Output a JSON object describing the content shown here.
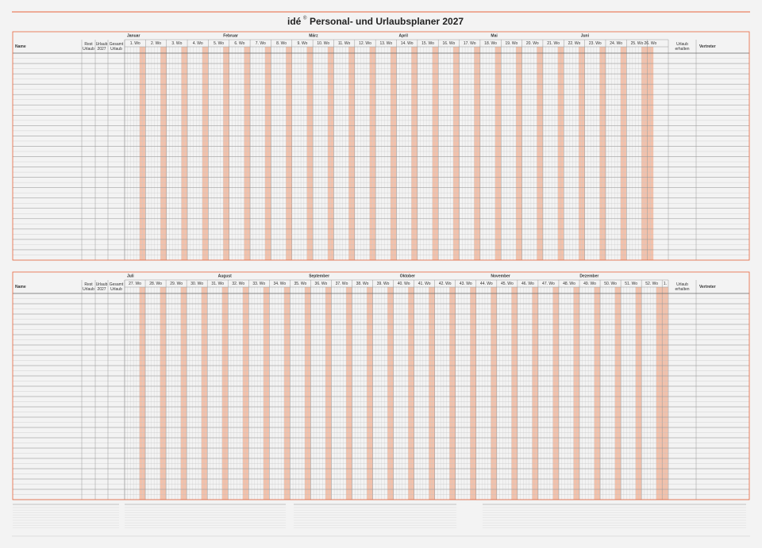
{
  "header": {
    "brand": "idé",
    "reg": "®",
    "title": "Personal- und Urlaubsplaner 2027"
  },
  "planner": [
    {
      "name": "Name",
      "rest": [
        "Rest",
        "Urlaub"
      ],
      "urlaub": [
        "Urlaub",
        "2027"
      ],
      "gesamt": [
        "Gesamt",
        "Urlaub"
      ],
      "erhalten": [
        "Urlaub",
        "erhalten"
      ],
      "vertreter": "Vertreter",
      "months": [
        "Januar",
        "Februar",
        "März",
        "April",
        "Mai",
        "Juni"
      ],
      "weeks": [
        "1. Wo",
        "2. Wo",
        "3. Wo",
        "4. Wo",
        "5. Wo",
        "6. Wo",
        "7. Wo",
        "8. Wo",
        "9. Wo",
        "10. Wo",
        "11. Wo",
        "12. Wo",
        "13. Wo",
        "14. Wo",
        "15. Wo",
        "16. Wo",
        "17. Wo",
        "18. Wo",
        "19. Wo",
        "20. Wo",
        "21. Wo",
        "22. Wo",
        "23. Wo",
        "24. Wo",
        "25. Wo",
        "26. Wo"
      ]
    },
    {
      "name": "Name",
      "rest": [
        "Rest",
        "Urlaub"
      ],
      "urlaub": [
        "Urlaub",
        "2027"
      ],
      "gesamt": [
        "Gesamt",
        "Urlaub"
      ],
      "erhalten": [
        "Urlaub",
        "erhalten"
      ],
      "vertreter": "Vertreter",
      "months": [
        "Juli",
        "August",
        "September",
        "Oktober",
        "November",
        "Dezember"
      ],
      "weeks": [
        "27. Wo",
        "28. Wo",
        "29. Wo",
        "30. Wo",
        "31. Wo",
        "32. Wo",
        "33. Wo",
        "34. Wo",
        "35. Wo",
        "36. Wo",
        "37. Wo",
        "38. Wo",
        "39. Wo",
        "40. Wo",
        "41. Wo",
        "42. Wo",
        "43. Wo",
        "44. Wo",
        "45. Wo",
        "46. Wo",
        "47. Wo",
        "48. Wo",
        "49. Wo",
        "50. Wo",
        "51. Wo",
        "52. Wo",
        "1."
      ]
    }
  ]
}
